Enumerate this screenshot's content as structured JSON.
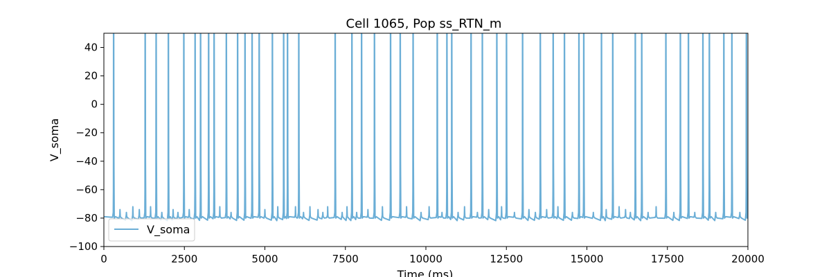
{
  "chart_data": {
    "type": "line",
    "title": "Cell 1065, Pop ss_RTN_m",
    "xlabel": "Time (ms)",
    "ylabel": "V_soma",
    "xlim": [
      0,
      20000
    ],
    "ylim": [
      -100,
      50
    ],
    "xticks": [
      0,
      2500,
      5000,
      7500,
      10000,
      12500,
      15000,
      17500,
      20000
    ],
    "yticks": [
      -100,
      -80,
      -60,
      -40,
      -20,
      0,
      20,
      40
    ],
    "grid": false,
    "legend_position": "lower-left",
    "baseline_mv": -80,
    "series": [
      {
        "name": "V_soma",
        "color": "#6baed6",
        "spike_times_ms": [
          300,
          1280,
          1620,
          2000,
          2480,
          2830,
          3000,
          3250,
          3420,
          3800,
          4150,
          4380,
          4600,
          4820,
          5230,
          5580,
          5700,
          6050,
          7180,
          7700,
          8000,
          8400,
          8900,
          9200,
          9600,
          10350,
          10650,
          10800,
          11400,
          11750,
          12200,
          12500,
          13000,
          13550,
          13950,
          14300,
          14750,
          14900,
          15450,
          15800,
          16500,
          16700,
          17450,
          17900,
          18150,
          18600,
          18800,
          19250,
          19500,
          19950
        ],
        "small_event_times_ms": [
          500,
          700,
          900,
          1100,
          1450,
          1800,
          2150,
          2300,
          2650,
          3600,
          3950,
          5000,
          5400,
          5950,
          6200,
          6400,
          6650,
          6800,
          6950,
          7400,
          7550,
          7850,
          8200,
          8650,
          9400,
          9850,
          10100,
          10500,
          11000,
          11200,
          11600,
          11950,
          12350,
          12750,
          13200,
          13400,
          13750,
          14100,
          14550,
          15200,
          15600,
          16000,
          16200,
          16350,
          16900,
          17150,
          17700,
          18350,
          19000,
          19750
        ]
      }
    ]
  }
}
